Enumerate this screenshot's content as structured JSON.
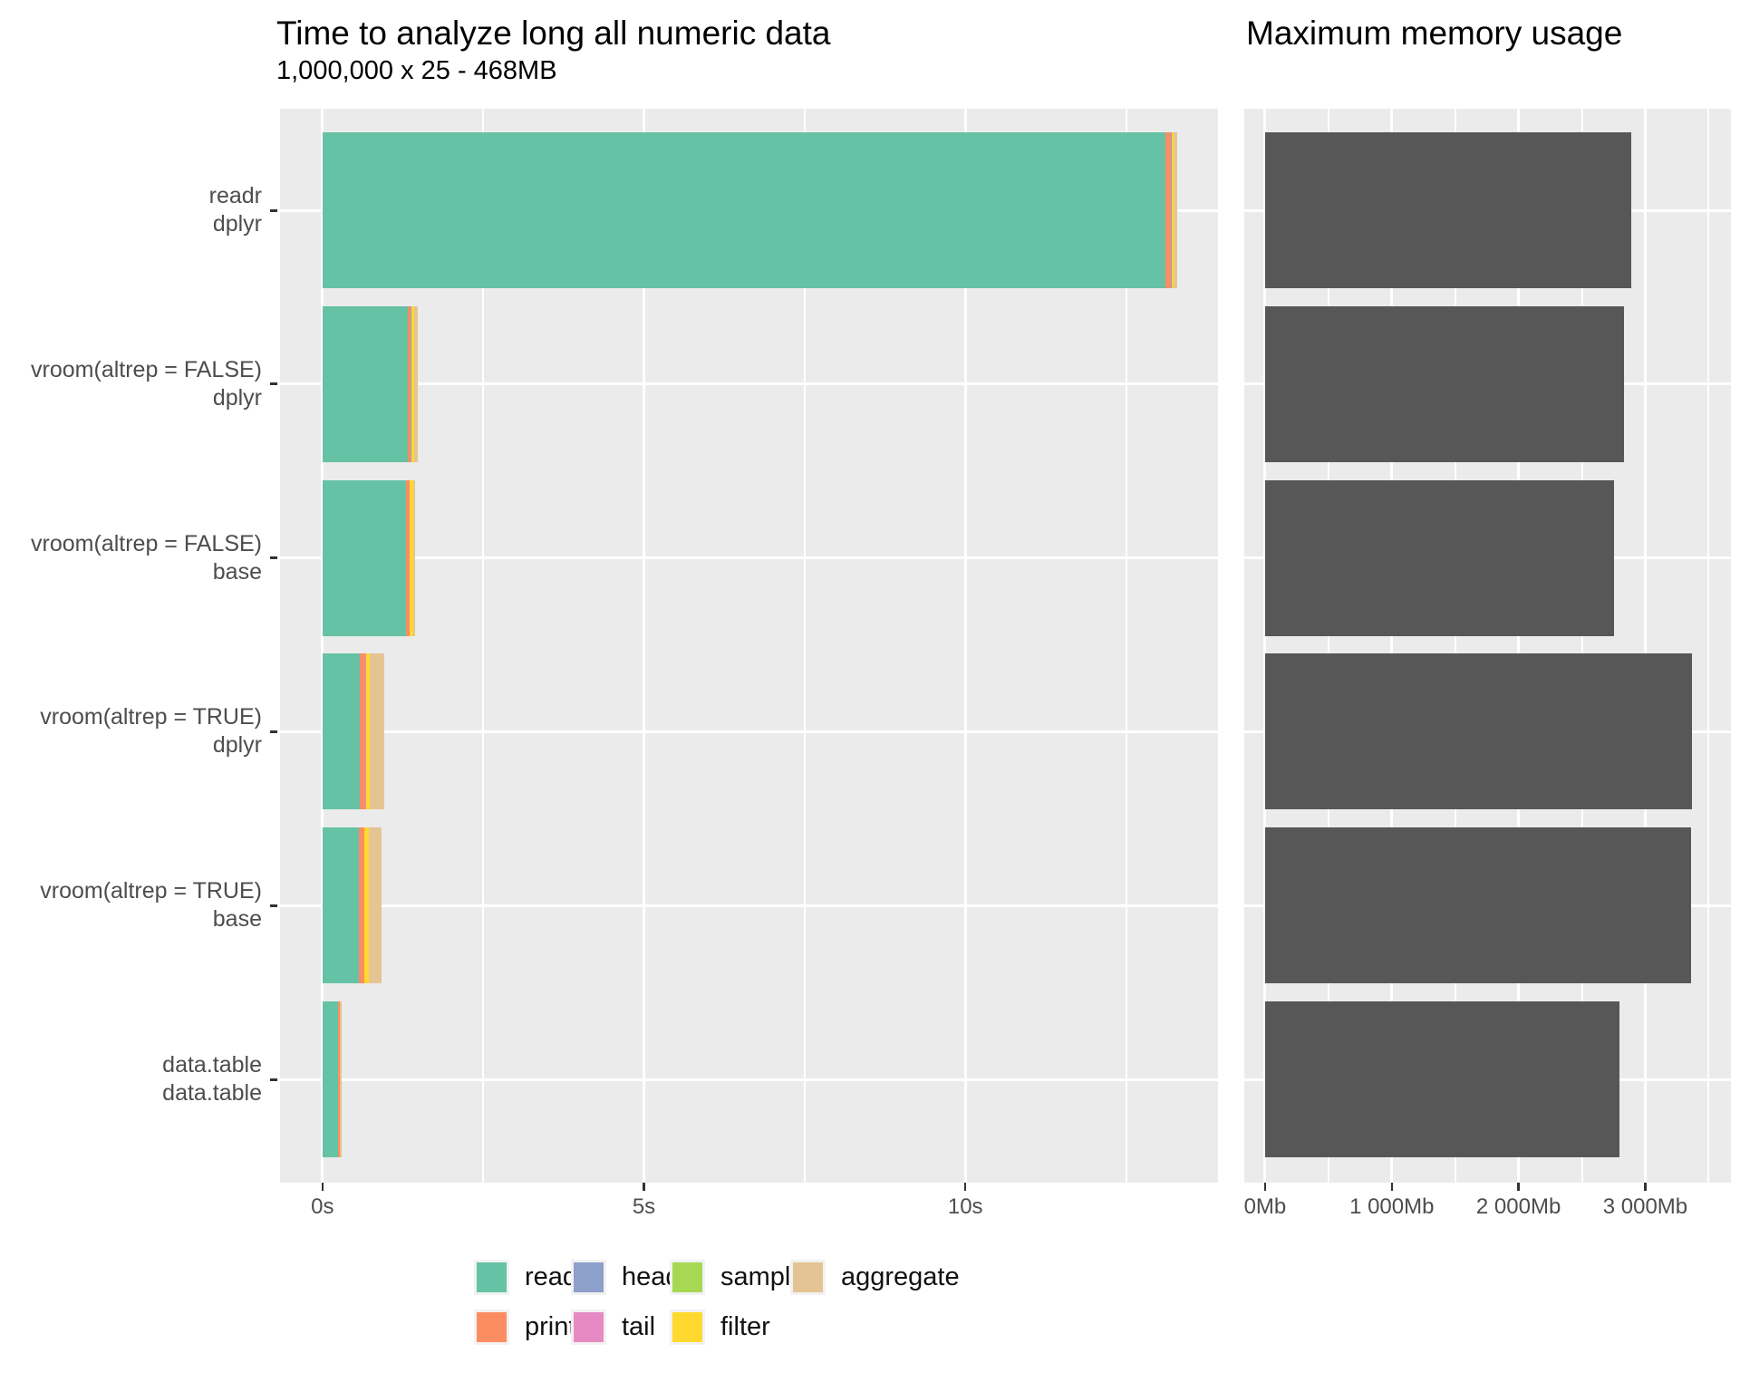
{
  "figure": {
    "background": "#FFFFFF",
    "panel_background": "#EBEBEB",
    "gridline_color": "#FFFFFF",
    "axis_text_color": "#4D4D4D",
    "tick_mark_color": "#333333",
    "title_color": "#000000"
  },
  "legend": {
    "position": "bottom",
    "key_background": "#F2F2F2",
    "items": [
      {
        "label": "read",
        "color": "#66C2A5"
      },
      {
        "label": "print",
        "color": "#FC8D62"
      },
      {
        "label": "head",
        "color": "#8DA0CB"
      },
      {
        "label": "tail",
        "color": "#E78AC3"
      },
      {
        "label": "sample",
        "color": "#A6D854"
      },
      {
        "label": "filter",
        "color": "#FFD92F"
      },
      {
        "label": "aggregate",
        "color": "#E5C494"
      }
    ]
  },
  "chart_data": [
    {
      "type": "bar",
      "orientation": "horizontal",
      "stacked": true,
      "title": "Time to analyze long all numeric data",
      "subtitle": "1,000,000 x 25 - 468MB",
      "unit": "seconds",
      "grid": true,
      "legend_position": "bottom",
      "categories": [
        "readr\ndplyr",
        "vroom(altrep = FALSE)\ndplyr",
        "vroom(altrep = FALSE)\nbase",
        "vroom(altrep = TRUE)\ndplyr",
        "vroom(altrep = TRUE)\nbase",
        "data.table\ndata.table"
      ],
      "series": [
        {
          "name": "read",
          "values": [
            13.11,
            1.33,
            1.3,
            0.58,
            0.57,
            0.24
          ]
        },
        {
          "name": "print",
          "values": [
            0.09,
            0.045,
            0.05,
            0.085,
            0.075,
            0.025
          ]
        },
        {
          "name": "head",
          "values": [
            0.005,
            0.004,
            0.004,
            0.004,
            0.004,
            0.002
          ]
        },
        {
          "name": "tail",
          "values": [
            0.005,
            0.004,
            0.004,
            0.004,
            0.004,
            0.002
          ]
        },
        {
          "name": "sample",
          "values": [
            0.005,
            0.004,
            0.004,
            0.004,
            0.004,
            0.002
          ]
        },
        {
          "name": "filter",
          "values": [
            0.03,
            0.045,
            0.055,
            0.06,
            0.065,
            0.004
          ]
        },
        {
          "name": "aggregate",
          "values": [
            0.055,
            0.045,
            0.02,
            0.22,
            0.2,
            0.028
          ]
        }
      ],
      "totals_seconds": [
        13.3,
        1.48,
        1.44,
        0.96,
        0.92,
        0.3
      ],
      "x_ticks": [
        {
          "value": 0,
          "label": "0s"
        },
        {
          "value": 5,
          "label": "5s"
        },
        {
          "value": 10,
          "label": "10s"
        }
      ],
      "x_minor": [
        2.5,
        7.5,
        12.5
      ],
      "xlim": [
        -0.66,
        13.93
      ]
    },
    {
      "type": "bar",
      "orientation": "horizontal",
      "stacked": false,
      "title": "Maximum memory usage",
      "unit": "Mb",
      "grid": true,
      "bar_color": "#575757",
      "categories": [
        "readr\ndplyr",
        "vroom(altrep = FALSE)\ndplyr",
        "vroom(altrep = FALSE)\nbase",
        "vroom(altrep = TRUE)\ndplyr",
        "vroom(altrep = TRUE)\nbase",
        "data.table\ndata.table"
      ],
      "values": [
        2890,
        2835,
        2755,
        3370,
        3360,
        2795
      ],
      "x_ticks": [
        {
          "value": 0,
          "label": "0Mb"
        },
        {
          "value": 1000,
          "label": "1 000Mb"
        },
        {
          "value": 2000,
          "label": "2 000Mb"
        },
        {
          "value": 3000,
          "label": "3 000Mb"
        }
      ],
      "x_minor": [
        500,
        1500,
        2500,
        3500
      ],
      "xlim": [
        -164,
        3676
      ]
    }
  ]
}
